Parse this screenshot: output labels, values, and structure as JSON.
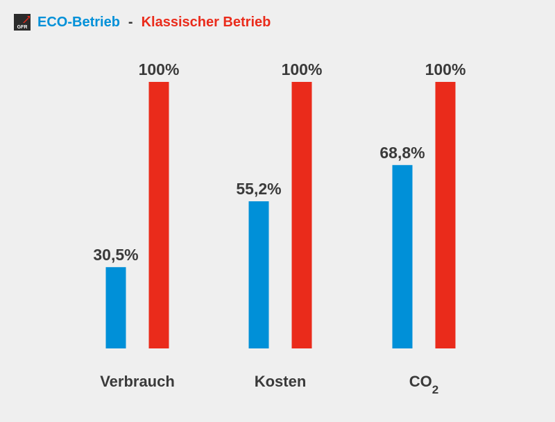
{
  "logo": {
    "text": "GFR",
    "icon": "gfr-logo-icon"
  },
  "header": {
    "eco_label": "ECO-Betrieb",
    "separator": "-",
    "classic_label": "Klassischer Betrieb"
  },
  "colors": {
    "eco": "#0090d8",
    "classic": "#ea2b1b",
    "label": "#3a3a3a",
    "background": "#efefef"
  },
  "chart_data": {
    "type": "bar",
    "categories": [
      "Verbrauch",
      "Kosten",
      "CO2"
    ],
    "series": [
      {
        "name": "ECO-Betrieb",
        "values": [
          30.5,
          55.2,
          68.8
        ],
        "labels": [
          "30,5%",
          "55,2%",
          "68,8%"
        ]
      },
      {
        "name": "Klassischer Betrieb",
        "values": [
          100,
          100,
          100
        ],
        "labels": [
          "100%",
          "100%",
          "100%"
        ]
      }
    ],
    "ylim": [
      0,
      100
    ],
    "grid": false,
    "legend": "top-left"
  }
}
